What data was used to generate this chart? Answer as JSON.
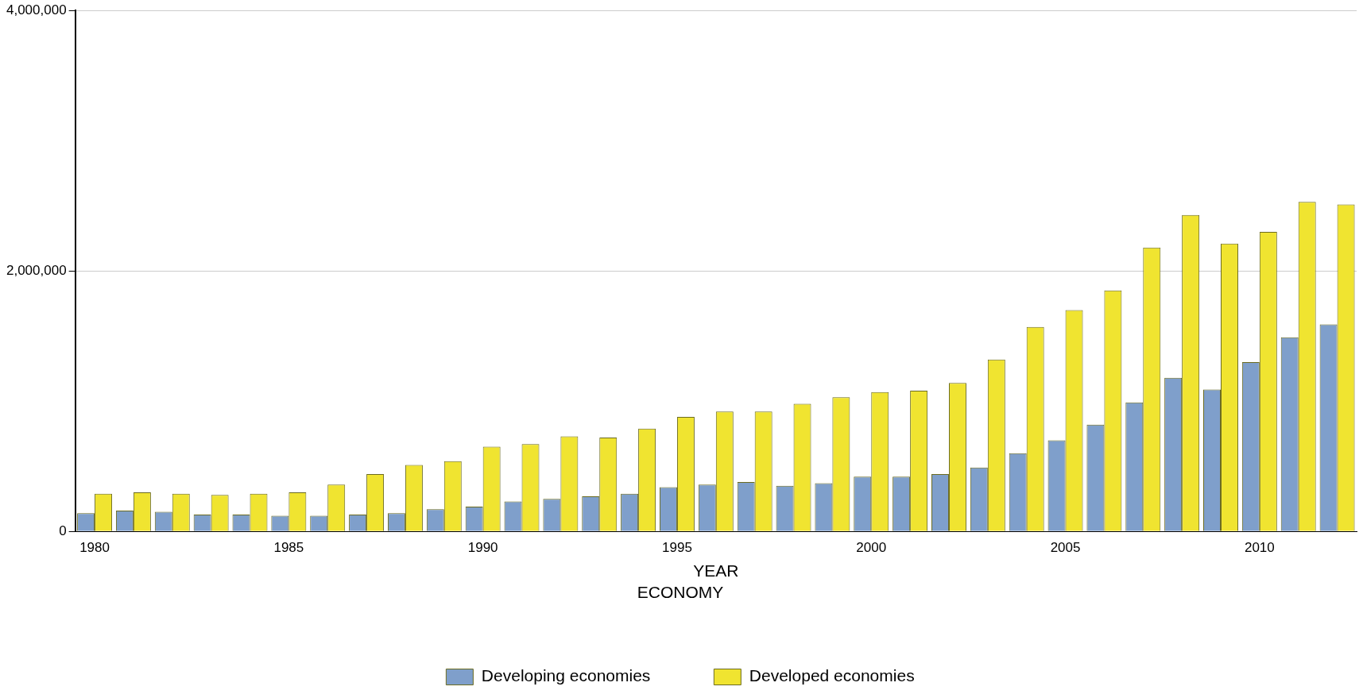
{
  "chart_data": {
    "type": "bar",
    "xlabel": "YEAR",
    "legend_title": "ECONOMY",
    "legend": "bottom",
    "grid": "y",
    "categories": [
      "1980",
      null,
      null,
      null,
      null,
      "1985",
      null,
      null,
      null,
      null,
      "1990",
      null,
      null,
      null,
      null,
      "1995",
      null,
      null,
      null,
      null,
      "2000",
      null,
      null,
      null,
      null,
      "2005",
      null,
      null,
      null,
      null,
      "2010",
      null,
      null
    ],
    "series": [
      {
        "name": "Developing economies",
        "color": "#7f9fcb",
        "values": [
          140000,
          160000,
          150000,
          130000,
          130000,
          120000,
          120000,
          130000,
          140000,
          170000,
          190000,
          230000,
          250000,
          270000,
          290000,
          340000,
          360000,
          380000,
          350000,
          370000,
          420000,
          420000,
          440000,
          490000,
          600000,
          700000,
          820000,
          990000,
          1180000,
          1090000,
          1300000,
          1490000,
          1590000
        ]
      },
      {
        "name": "Developed economies",
        "color": "#f0e430",
        "values": [
          290000,
          300000,
          290000,
          280000,
          290000,
          300000,
          360000,
          440000,
          510000,
          540000,
          650000,
          670000,
          730000,
          720000,
          790000,
          880000,
          920000,
          920000,
          980000,
          1030000,
          1070000,
          1080000,
          1140000,
          1320000,
          1570000,
          1700000,
          1850000,
          2180000,
          2430000,
          2210000,
          2300000,
          2530000,
          2510000
        ]
      }
    ],
    "ylim": [
      0,
      4000000
    ],
    "yticks": [
      {
        "value": 0,
        "label": "0"
      },
      {
        "value": 2000000,
        "label": "2,000,000"
      },
      {
        "value": 4000000,
        "label": "4,000,000"
      }
    ]
  }
}
